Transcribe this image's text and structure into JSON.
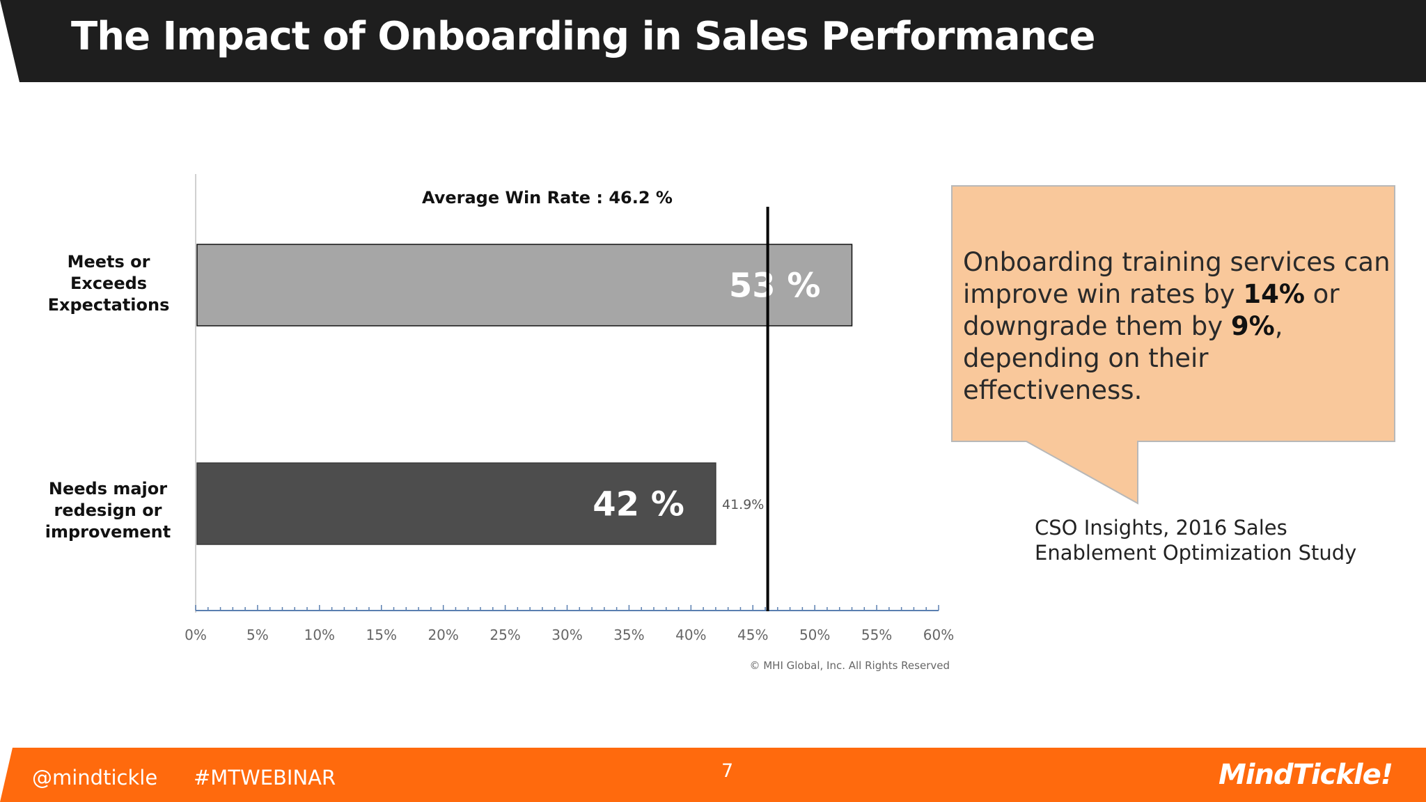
{
  "slide": {
    "title": "The Impact of Onboarding in Sales Performance",
    "page_number": "7"
  },
  "callout": {
    "part1": "Onboarding training services can improve win rates by ",
    "bold1": "14%",
    "part2": " or downgrade them by ",
    "bold2": "9%",
    "part3": ", depending on their effectiveness."
  },
  "source": "CSO Insights, 2016 Sales\nEnablement Optimization Study",
  "footer": {
    "handle": "@mindtickle",
    "hashtag": "#MTWEBINAR",
    "logo": "MindTickle"
  },
  "chart_data": {
    "type": "bar",
    "orientation": "horizontal",
    "categories": [
      "Meets or Exceeds Expectations",
      "Needs major redesign or improvement"
    ],
    "category_label_lines": [
      [
        "Meets or",
        "Exceeds",
        "Expectations"
      ],
      [
        "Needs major",
        "redesign or",
        "improvement"
      ]
    ],
    "values": [
      53,
      42
    ],
    "bar_labels": [
      "53 %",
      "42 %"
    ],
    "bar_colors": [
      "#a6a6a6",
      "#4d4d4d"
    ],
    "secondary_label": "41.9%",
    "reference_line": {
      "value": 46.2,
      "label": "Average Win Rate : 46.2 %"
    },
    "xlim": [
      0,
      60
    ],
    "x_ticks": [
      0,
      5,
      10,
      15,
      20,
      25,
      30,
      35,
      40,
      45,
      50,
      55,
      60
    ],
    "x_tick_labels": [
      "0%",
      "5%",
      "10%",
      "15%",
      "20%",
      "25%",
      "30%",
      "35%",
      "40%",
      "45%",
      "50%",
      "55%",
      "60%"
    ],
    "copyright": "© MHI Global, Inc. All Rights Reserved",
    "grid": false
  },
  "colors": {
    "title_bar": "#1e1e1e",
    "footer_bar": "#ff6a0d",
    "callout_fill": "#f9c89b",
    "callout_border": "#b8b8b8"
  }
}
